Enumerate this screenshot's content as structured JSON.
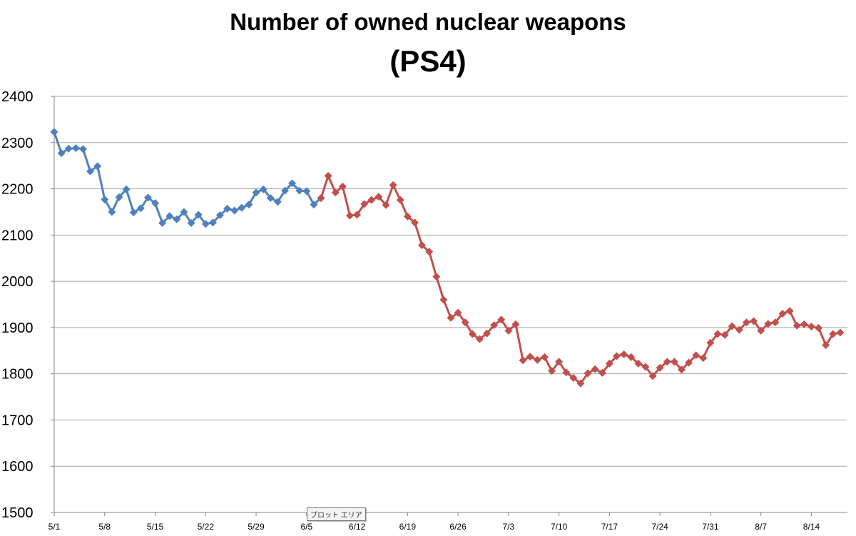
{
  "chart_data": {
    "type": "line",
    "title": "Number of owned nuclear weapons",
    "subtitle": "(PS4)",
    "ylim": [
      1500,
      2400
    ],
    "yticks": [
      1500,
      1600,
      1700,
      1800,
      1900,
      2000,
      2100,
      2200,
      2300,
      2400
    ],
    "x_start": "5/1",
    "x_end": "8/19",
    "xticks": [
      "5/1",
      "5/8",
      "5/15",
      "5/22",
      "5/29",
      "6/5",
      "6/12",
      "6/19",
      "6/26",
      "7/3",
      "7/10",
      "7/17",
      "7/24",
      "7/31",
      "8/7",
      "8/14"
    ],
    "grid": true,
    "series": [
      {
        "color": "#4f81bd",
        "start": "5/1",
        "values": [
          2323,
          2277,
          2287,
          2288,
          2286,
          2238,
          2249,
          2177,
          2150,
          2182,
          2199,
          2149,
          2158,
          2181,
          2169,
          2126,
          2141,
          2134,
          2150,
          2126,
          2144,
          2124,
          2127,
          2143,
          2157,
          2153,
          2159,
          2166,
          2192,
          2199,
          2180,
          2172,
          2196,
          2212,
          2196,
          2195,
          2166,
          2180
        ]
      },
      {
        "color": "#c0504d",
        "start": "6/7",
        "values": [
          2180,
          2228,
          2192,
          2205,
          2142,
          2144,
          2167,
          2176,
          2183,
          2165,
          2208,
          2176,
          2140,
          2127,
          2078,
          2064,
          2010,
          1960,
          1921,
          1932,
          1911,
          1886,
          1875,
          1887,
          1905,
          1917,
          1893,
          1907,
          1829,
          1837,
          1830,
          1836,
          1806,
          1826,
          1803,
          1791,
          1779,
          1801,
          1810,
          1802,
          1822,
          1838,
          1842,
          1836,
          1822,
          1815,
          1795,
          1813,
          1826,
          1826,
          1809,
          1824,
          1840,
          1834,
          1867,
          1886,
          1884,
          1903,
          1895,
          1911,
          1914,
          1893,
          1908,
          1911,
          1930,
          1936,
          1904,
          1907,
          1902,
          1899,
          1862,
          1886,
          1889
        ]
      }
    ],
    "tooltip": "プロット エリア"
  }
}
